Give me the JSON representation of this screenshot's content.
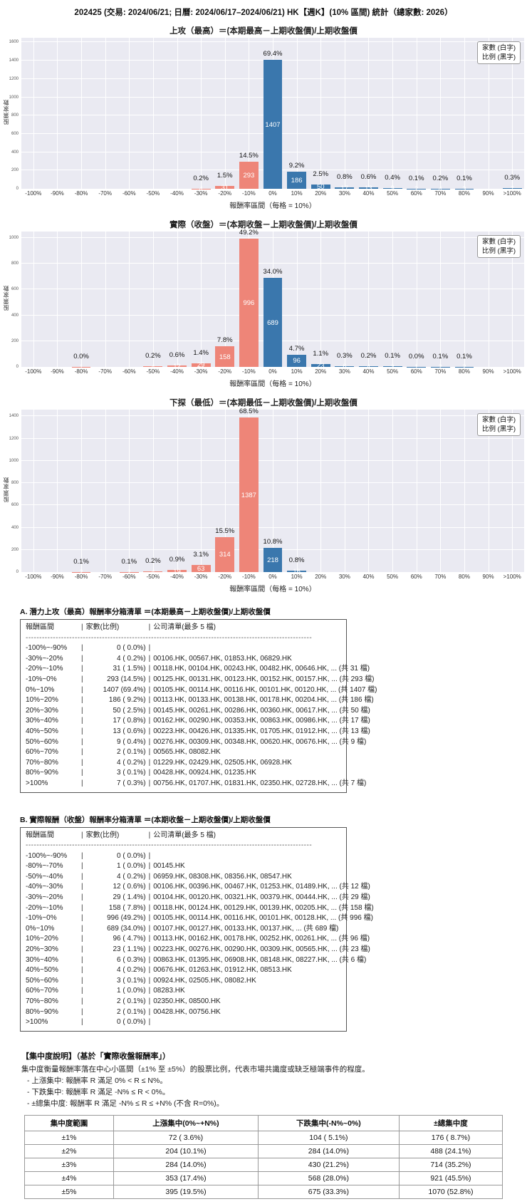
{
  "page_title": "202425 (交易: 2024/06/21; 日曆: 2024/06/17–2024/06/21) HK【週K】(10% 區間) 統計（總家數: 2026）",
  "colors": {
    "bar_negative": "#ee8578",
    "bar_positive": "#3a77ad",
    "plot_bg": "#eaeaf2",
    "grid": "#ffffff"
  },
  "chart_data": [
    {
      "type": "bar",
      "title": "上攻（最高）＝(本期最高－上期收盤價)/上期收盤價",
      "xlabel": "報酬率區間（每格 = 10%）",
      "ylabel": "股票家數",
      "legend": [
        "家數 (白字)",
        "比例 (黑字)"
      ],
      "categories": [
        "-100%",
        "-90%",
        "-80%",
        "-70%",
        "-60%",
        "-50%",
        "-40%",
        "-30%",
        "-20%",
        "-10%",
        "0%",
        "10%",
        "20%",
        "30%",
        "40%",
        "50%",
        "60%",
        "70%",
        "80%",
        "90%",
        ">100%"
      ],
      "values": [
        0,
        0,
        0,
        0,
        0,
        0,
        0,
        4,
        31,
        293,
        1407,
        186,
        50,
        17,
        13,
        9,
        2,
        4,
        3,
        0,
        7
      ],
      "pct_labels": [
        "",
        "",
        "",
        "",
        "",
        "",
        "",
        "0.2%",
        "1.5%",
        "14.5%",
        "69.4%",
        "9.2%",
        "2.5%",
        "0.8%",
        "0.6%",
        "0.4%",
        "0.1%",
        "0.2%",
        "0.1%",
        "",
        "0.3%"
      ],
      "ylim": 1650,
      "yticks": [
        0,
        200,
        400,
        600,
        800,
        1000,
        1200,
        1400,
        1600
      ],
      "grid": "on",
      "legend_position": "top-right"
    },
    {
      "type": "bar",
      "title": "實際（收盤）＝(本期收盤－上期收盤價)/上期收盤價",
      "xlabel": "報酬率區間（每格 = 10%）",
      "ylabel": "股票家數",
      "legend": [
        "家數 (白字)",
        "比例 (黑字)"
      ],
      "categories": [
        "-100%",
        "-90%",
        "-80%",
        "-70%",
        "-60%",
        "-50%",
        "-40%",
        "-30%",
        "-20%",
        "-10%",
        "0%",
        "10%",
        "20%",
        "30%",
        "40%",
        "50%",
        "60%",
        "70%",
        "80%",
        "90%",
        ">100%"
      ],
      "values": [
        0,
        0,
        1,
        0,
        0,
        4,
        12,
        29,
        158,
        996,
        689,
        96,
        23,
        6,
        4,
        3,
        1,
        2,
        2,
        0,
        0
      ],
      "pct_labels": [
        "",
        "",
        "0.0%",
        "",
        "",
        "0.2%",
        "0.6%",
        "1.4%",
        "7.8%",
        "49.2%",
        "34.0%",
        "4.7%",
        "1.1%",
        "0.3%",
        "0.2%",
        "0.1%",
        "0.0%",
        "0.1%",
        "0.1%",
        "",
        ""
      ],
      "ylim": 1050,
      "yticks": [
        0,
        200,
        400,
        600,
        800,
        1000
      ],
      "grid": "on",
      "legend_position": "top-right"
    },
    {
      "type": "bar",
      "title": "下探（最低）＝(本期最低－上期收盤價)/上期收盤價",
      "xlabel": "報酬率區間（每格 = 10%）",
      "ylabel": "股票家數",
      "legend": [
        "家數 (白字)",
        "比例 (黑字)"
      ],
      "categories": [
        "-100%",
        "-90%",
        "-80%",
        "-70%",
        "-60%",
        "-50%",
        "-40%",
        "-30%",
        "-20%",
        "-10%",
        "0%",
        "10%",
        "20%",
        "30%",
        "40%",
        "50%",
        "60%",
        "70%",
        "80%",
        "90%",
        ">100%"
      ],
      "values": [
        0,
        0,
        2,
        0,
        2,
        4,
        19,
        63,
        314,
        1387,
        218,
        16,
        0,
        0,
        0,
        0,
        0,
        0,
        0,
        0,
        0
      ],
      "pct_labels": [
        "",
        "",
        "0.1%",
        "",
        "0.1%",
        "0.2%",
        "0.9%",
        "3.1%",
        "15.5%",
        "68.5%",
        "10.8%",
        "0.8%",
        "",
        "",
        "",
        "",
        "",
        "",
        "",
        "",
        ""
      ],
      "ylim": 1460,
      "yticks": [
        0,
        200,
        400,
        600,
        800,
        1000,
        1200,
        1400
      ],
      "grid": "on",
      "legend_position": "top-right"
    }
  ],
  "table_a": {
    "title": "A. 潛力上攻（最高）報酬率分箱清單 ＝(本期最高－上期收盤價)/上期收盤價",
    "headers": [
      "報酬區間",
      "家數(比例)",
      "公司清單(最多 5 檔)"
    ],
    "divider": "---------------------------------------------------------------------------------------------------------",
    "rows": [
      {
        "range": "-100%~-90%",
        "count": "0 ( 0.0%)",
        "companies": ""
      },
      {
        "range": "-30%~-20%",
        "count": "4 ( 0.2%)",
        "companies": "00106.HK, 00567.HK, 01853.HK, 06829.HK"
      },
      {
        "range": "-20%~-10%",
        "count": "31 ( 1.5%)",
        "companies": "00118.HK, 00104.HK, 00243.HK, 00482.HK, 00646.HK, ... (共 31 檔)"
      },
      {
        "range": "-10%~0%",
        "count": "293 (14.5%)",
        "companies": "00125.HK, 00131.HK, 00123.HK, 00152.HK, 00157.HK, ... (共 293 檔)"
      },
      {
        "range": "0%~10%",
        "count": "1407 (69.4%)",
        "companies": "00105.HK, 00114.HK, 00116.HK, 00101.HK, 00120.HK, ... (共 1407 檔)"
      },
      {
        "range": "10%~20%",
        "count": "186 ( 9.2%)",
        "companies": "00113.HK, 00133.HK, 00138.HK, 00178.HK, 00204.HK, ... (共 186 檔)"
      },
      {
        "range": "20%~30%",
        "count": "50 ( 2.5%)",
        "companies": "00145.HK, 00261.HK, 00286.HK, 00360.HK, 00617.HK, ... (共 50 檔)"
      },
      {
        "range": "30%~40%",
        "count": "17 ( 0.8%)",
        "companies": "00162.HK, 00290.HK, 00353.HK, 00863.HK, 00986.HK, ... (共 17 檔)"
      },
      {
        "range": "40%~50%",
        "count": "13 ( 0.6%)",
        "companies": "00223.HK, 00426.HK, 01335.HK, 01705.HK, 01912.HK, ... (共 13 檔)"
      },
      {
        "range": "50%~60%",
        "count": "9 ( 0.4%)",
        "companies": "00276.HK, 00309.HK, 00348.HK, 00620.HK, 00676.HK, ... (共 9 檔)"
      },
      {
        "range": "60%~70%",
        "count": "2 ( 0.1%)",
        "companies": "00565.HK, 08082.HK"
      },
      {
        "range": "70%~80%",
        "count": "4 ( 0.2%)",
        "companies": "01229.HK, 02429.HK, 02505.HK, 06928.HK"
      },
      {
        "range": "80%~90%",
        "count": "3 ( 0.1%)",
        "companies": "00428.HK, 00924.HK, 01235.HK"
      },
      {
        "range": ">100%",
        "count": "7 ( 0.3%)",
        "companies": "00756.HK, 01707.HK, 01831.HK, 02350.HK, 02728.HK, ... (共 7 檔)"
      }
    ]
  },
  "table_b": {
    "title": "B. 實際報酬（收盤）報酬率分箱清單 ＝(本期收盤－上期收盤價)/上期收盤價",
    "headers": [
      "報酬區間",
      "家數(比例)",
      "公司清單(最多 5 檔)"
    ],
    "divider": "---------------------------------------------------------------------------------------------------------",
    "rows": [
      {
        "range": "-100%~-90%",
        "count": "0 ( 0.0%)",
        "companies": ""
      },
      {
        "range": "-80%~-70%",
        "count": "1 ( 0.0%)",
        "companies": "00145.HK"
      },
      {
        "range": "-50%~-40%",
        "count": "4 ( 0.2%)",
        "companies": "06959.HK, 08308.HK, 08356.HK, 08547.HK"
      },
      {
        "range": "-40%~-30%",
        "count": "12 ( 0.6%)",
        "companies": "00106.HK, 00396.HK, 00467.HK, 01253.HK, 01489.HK, ... (共 12 檔)"
      },
      {
        "range": "-30%~-20%",
        "count": "29 ( 1.4%)",
        "companies": "00104.HK, 00120.HK, 00321.HK, 00379.HK, 00444.HK, ... (共 29 檔)"
      },
      {
        "range": "-20%~-10%",
        "count": "158 ( 7.8%)",
        "companies": "00118.HK, 00124.HK, 00129.HK, 00139.HK, 00205.HK, ... (共 158 檔)"
      },
      {
        "range": "-10%~0%",
        "count": "996 (49.2%)",
        "companies": "00105.HK, 00114.HK, 00116.HK, 00101.HK, 00128.HK, ... (共 996 檔)"
      },
      {
        "range": "0%~10%",
        "count": "689 (34.0%)",
        "companies": "00107.HK, 00127.HK, 00133.HK, 00137.HK, ... (共 689 檔)"
      },
      {
        "range": "10%~20%",
        "count": "96 ( 4.7%)",
        "companies": "00113.HK, 00162.HK, 00178.HK, 00252.HK, 00261.HK, ... (共 96 檔)"
      },
      {
        "range": "20%~30%",
        "count": "23 ( 1.1%)",
        "companies": "00223.HK, 00276.HK, 00290.HK, 00309.HK, 00565.HK, ... (共 23 檔)"
      },
      {
        "range": "30%~40%",
        "count": "6 ( 0.3%)",
        "companies": "00863.HK, 01395.HK, 06908.HK, 08148.HK, 08227.HK, ... (共 6 檔)"
      },
      {
        "range": "40%~50%",
        "count": "4 ( 0.2%)",
        "companies": "00676.HK, 01263.HK, 01912.HK, 08513.HK"
      },
      {
        "range": "50%~60%",
        "count": "3 ( 0.1%)",
        "companies": "00924.HK, 02505.HK, 08082.HK"
      },
      {
        "range": "60%~70%",
        "count": "1 ( 0.0%)",
        "companies": "08283.HK"
      },
      {
        "range": "70%~80%",
        "count": "2 ( 0.1%)",
        "companies": "02350.HK, 08500.HK"
      },
      {
        "range": "80%~90%",
        "count": "2 ( 0.1%)",
        "companies": "00428.HK, 00756.HK"
      },
      {
        "range": ">100%",
        "count": "0 ( 0.0%)",
        "companies": ""
      }
    ]
  },
  "concentration": {
    "heading": "【集中度說明】（基於「實際收盤報酬率」）",
    "description": "集中度衡量報酬率落在中心小區間（±1% 至 ±5%）的股票比例，代表市場共識度或缺乏極端事件的程度。",
    "bullets": [
      "- 上漲集中: 報酬率 R 滿足 0% < R ≤ N%。",
      "- 下跌集中: 報酬率 R 滿足 -N% ≤ R < 0%。",
      "- ±總集中度: 報酬率 R 滿足 -N% ≤ R ≤ +N% (不含 R=0%)。"
    ],
    "table": {
      "headers": [
        "集中度範圍",
        "上漲集中(0%~+N%)",
        "下跌集中(-N%~0%)",
        "±總集中度"
      ],
      "rows": [
        [
          "±1%",
          "72 ( 3.6%)",
          "104 ( 5.1%)",
          "176 ( 8.7%)"
        ],
        [
          "±2%",
          "204 (10.1%)",
          "284 (14.0%)",
          "488 (24.1%)"
        ],
        [
          "±3%",
          "284 (14.0%)",
          "430 (21.2%)",
          "714 (35.2%)"
        ],
        [
          "±4%",
          "353 (17.4%)",
          "568 (28.0%)",
          "921 (45.5%)"
        ],
        [
          "±5%",
          "395 (19.5%)",
          "675 (33.3%)",
          "1070 (52.8%)"
        ]
      ]
    }
  }
}
